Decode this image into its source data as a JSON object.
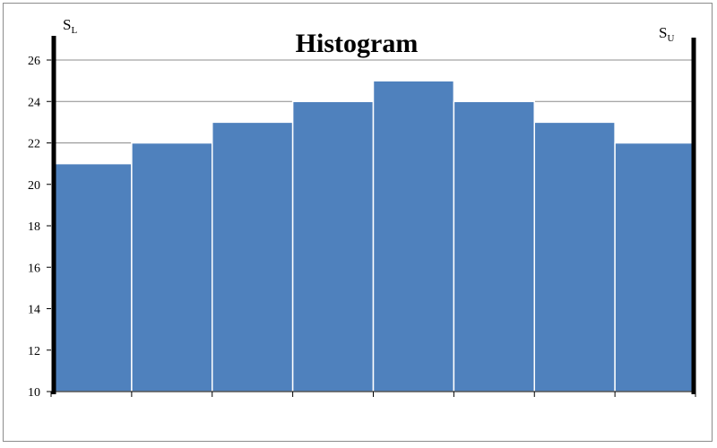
{
  "chart_data": {
    "type": "bar",
    "title": "Histogram",
    "xlabel": "",
    "ylabel": "",
    "ylim": [
      10,
      26
    ],
    "ytick_step": 2,
    "y_ticks": [
      "10",
      "12",
      "14",
      "16",
      "18",
      "20",
      "22",
      "24",
      "26"
    ],
    "values": [
      21,
      22,
      23,
      24,
      25,
      24,
      23,
      22
    ],
    "bar_color": "#4F81BD",
    "grid": true,
    "legend": "none",
    "limit_lines": {
      "lower": {
        "letter": "S",
        "sub": "L"
      },
      "upper": {
        "letter": "S",
        "sub": "U"
      }
    }
  }
}
